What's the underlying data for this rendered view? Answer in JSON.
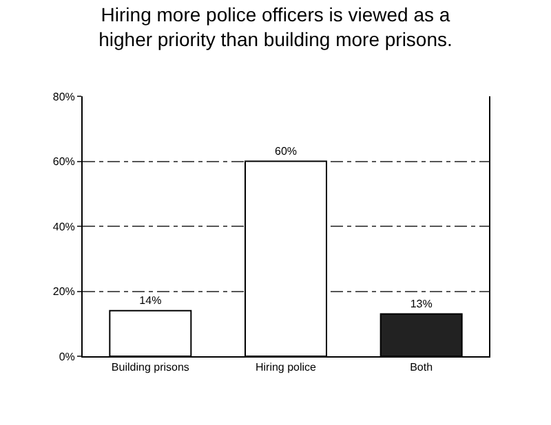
{
  "chart_data": {
    "type": "bar",
    "title": "Hiring more police officers is viewed as a higher priority than building more prisons.",
    "categories": [
      "Building prisons",
      "Hiring police",
      "Both"
    ],
    "values": [
      14,
      60,
      13
    ],
    "colors": [
      "#ffffff",
      "#ffffff",
      "#222222"
    ],
    "value_labels": [
      "14%",
      "60%",
      "13%"
    ],
    "ylim": [
      0,
      80
    ],
    "yticks": [
      {
        "value": 0,
        "label": "0%"
      },
      {
        "value": 20,
        "label": "20%"
      },
      {
        "value": 40,
        "label": "40%"
      },
      {
        "value": 60,
        "label": "60%"
      },
      {
        "value": 80,
        "label": "80%"
      }
    ],
    "grid": "y"
  }
}
